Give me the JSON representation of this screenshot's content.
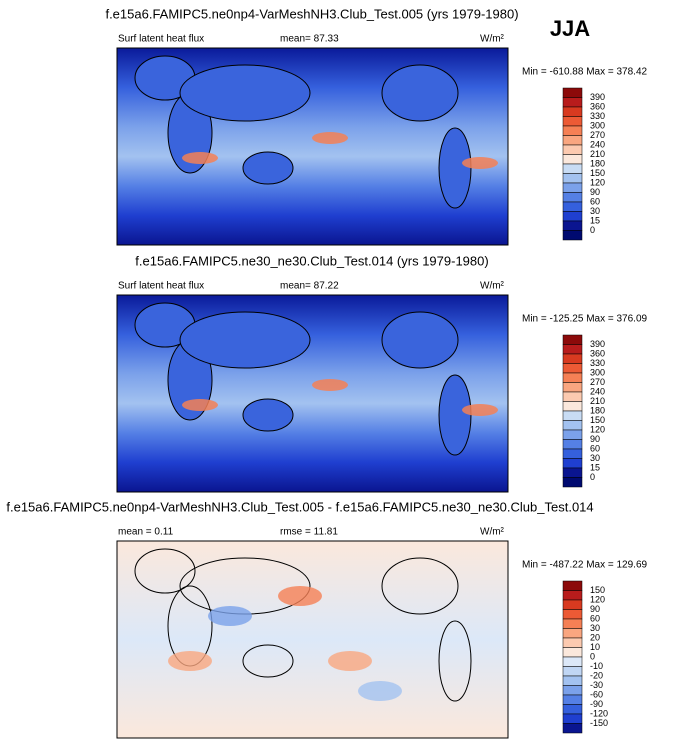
{
  "season": "JJA",
  "panels": [
    {
      "title": "f.e15a6.FAMIPC5.ne0np4-VarMeshNH3.Club_Test.005 (yrs 1979-1980)",
      "left_label": "Surf latent heat flux",
      "center_label": "mean=  87.33",
      "units": "W/m²",
      "min_max": "Min = -610.88 Max = 378.42",
      "colorbar_labels": [
        390,
        360,
        330,
        300,
        270,
        240,
        210,
        180,
        150,
        120,
        90,
        60,
        30,
        15,
        0
      ],
      "colorbar_colors": [
        "#8c0a0a",
        "#b81c1c",
        "#d83a20",
        "#ec5a35",
        "#f58055",
        "#f9a680",
        "#fccab0",
        "#fbe8dc",
        "#c8dcf4",
        "#a3c2f0",
        "#7ba1ea",
        "#5580e5",
        "#3560dd",
        "#1f3fd0",
        "#0a1590",
        "#000a70"
      ]
    },
    {
      "title": "f.e15a6.FAMIPC5.ne30_ne30.Club_Test.014 (yrs 1979-1980)",
      "left_label": "Surf latent heat flux",
      "center_label": "mean=  87.22",
      "units": "W/m²",
      "min_max": "Min = -125.25 Max = 376.09",
      "colorbar_labels": [
        390,
        360,
        330,
        300,
        270,
        240,
        210,
        180,
        150,
        120,
        90,
        60,
        30,
        15,
        0
      ],
      "colorbar_colors": [
        "#8c0a0a",
        "#b81c1c",
        "#d83a20",
        "#ec5a35",
        "#f58055",
        "#f9a680",
        "#fccab0",
        "#fbe8dc",
        "#c8dcf4",
        "#a3c2f0",
        "#7ba1ea",
        "#5580e5",
        "#3560dd",
        "#1f3fd0",
        "#0a1590",
        "#000a70"
      ]
    },
    {
      "title": "f.e15a6.FAMIPC5.ne0np4-VarMeshNH3.Club_Test.005 - f.e15a6.FAMIPC5.ne30_ne30.Club_Test.014",
      "left_label": "mean =   0.11",
      "center_label": "rmse = 11.81",
      "units": "W/m²",
      "min_max": "Min = -487.22 Max = 129.69",
      "colorbar_labels": [
        150,
        120,
        90,
        60,
        30,
        20,
        10,
        0,
        -10,
        -20,
        -30,
        -60,
        -90,
        -120,
        -150
      ],
      "colorbar_colors": [
        "#8c0a0a",
        "#b81c1c",
        "#d83a20",
        "#ec5a35",
        "#f58055",
        "#f9a680",
        "#fccab0",
        "#fbe8dc",
        "#dce8f8",
        "#c0d6f4",
        "#a3c2f0",
        "#7ba1ea",
        "#5580e5",
        "#3560dd",
        "#1f3fd0",
        "#0a1590"
      ]
    }
  ]
}
